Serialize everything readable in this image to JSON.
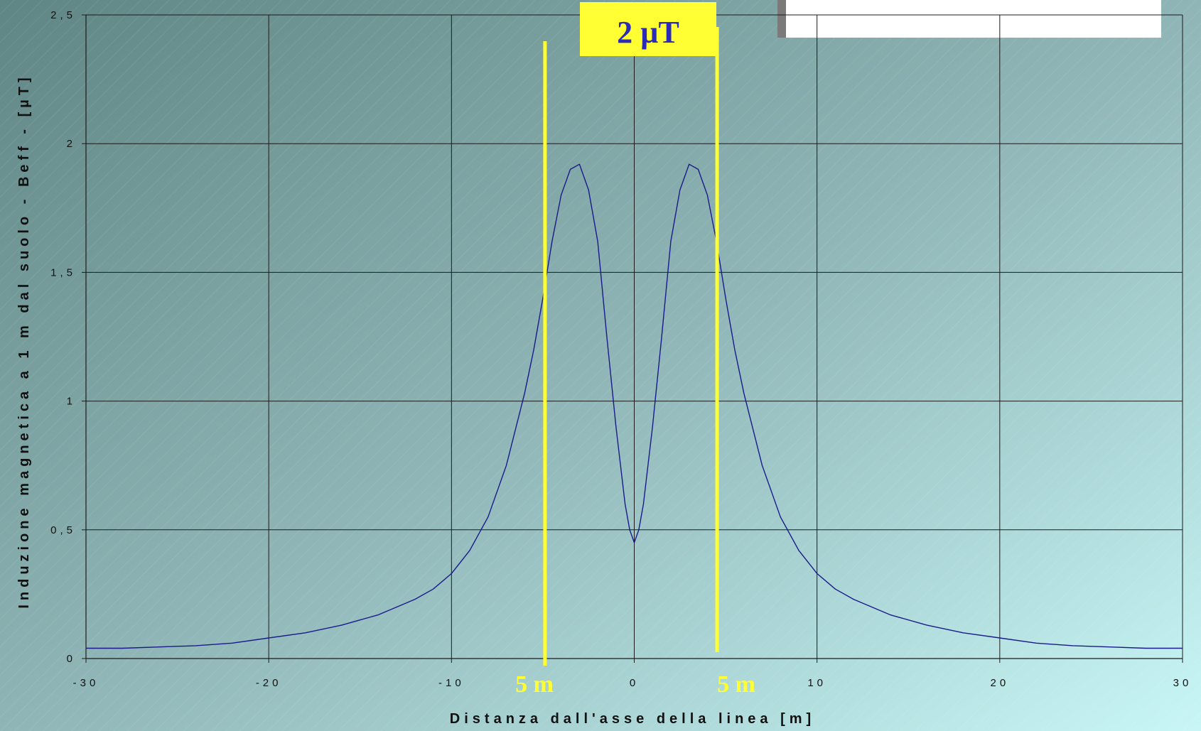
{
  "chart_data": {
    "type": "line",
    "xlabel": "Distanza dall'asse della linea [m]",
    "ylabel": "Induzione magnetica a 1 m dal suolo - Beff - [µT]",
    "xlim": [
      -30,
      30
    ],
    "ylim": [
      0,
      2.5
    ],
    "x_ticks": [
      -30,
      -20,
      -10,
      0,
      10,
      20,
      30
    ],
    "x_tick_labels": [
      "-30",
      "-20",
      "-10",
      "0",
      "10",
      "20",
      "30"
    ],
    "y_ticks": [
      0,
      0.5,
      1,
      1.5,
      2,
      2.5
    ],
    "y_tick_labels": [
      "0",
      "0,5",
      "1",
      "1,5",
      "2",
      "2,5"
    ],
    "grid": true,
    "legend": "none",
    "series": [
      {
        "color": "#1a1a8c",
        "x": [
          -30,
          -28,
          -26,
          -24,
          -22,
          -20,
          -18,
          -16,
          -14,
          -12,
          -11,
          -10,
          -9,
          -8,
          -7,
          -6,
          -5.5,
          -5,
          -4.5,
          -4,
          -3.5,
          -3,
          -2.5,
          -2,
          -1.5,
          -1,
          -0.5,
          -0.25,
          0,
          0.25,
          0.5,
          1,
          1.5,
          2,
          2.5,
          3,
          3.5,
          4,
          4.5,
          5,
          5.5,
          6,
          7,
          8,
          9,
          10,
          11,
          12,
          14,
          16,
          18,
          20,
          22,
          24,
          26,
          28,
          30
        ],
        "y": [
          0.04,
          0.04,
          0.045,
          0.05,
          0.06,
          0.08,
          0.1,
          0.13,
          0.17,
          0.23,
          0.27,
          0.33,
          0.42,
          0.55,
          0.75,
          1.03,
          1.2,
          1.4,
          1.62,
          1.8,
          1.9,
          1.92,
          1.82,
          1.62,
          1.25,
          0.9,
          0.6,
          0.5,
          0.45,
          0.5,
          0.6,
          0.9,
          1.25,
          1.62,
          1.82,
          1.92,
          1.9,
          1.8,
          1.62,
          1.4,
          1.2,
          1.03,
          0.75,
          0.55,
          0.42,
          0.33,
          0.27,
          0.23,
          0.17,
          0.13,
          0.1,
          0.08,
          0.06,
          0.05,
          0.045,
          0.04,
          0.04
        ]
      }
    ],
    "annotations": {
      "box_label": "2 µT",
      "left_line_x": -5,
      "left_line_label": "5 m",
      "right_line_x": 5,
      "right_line_label": "5 m",
      "line_color": "#ffff33",
      "box_fill": "#ffff33"
    }
  }
}
